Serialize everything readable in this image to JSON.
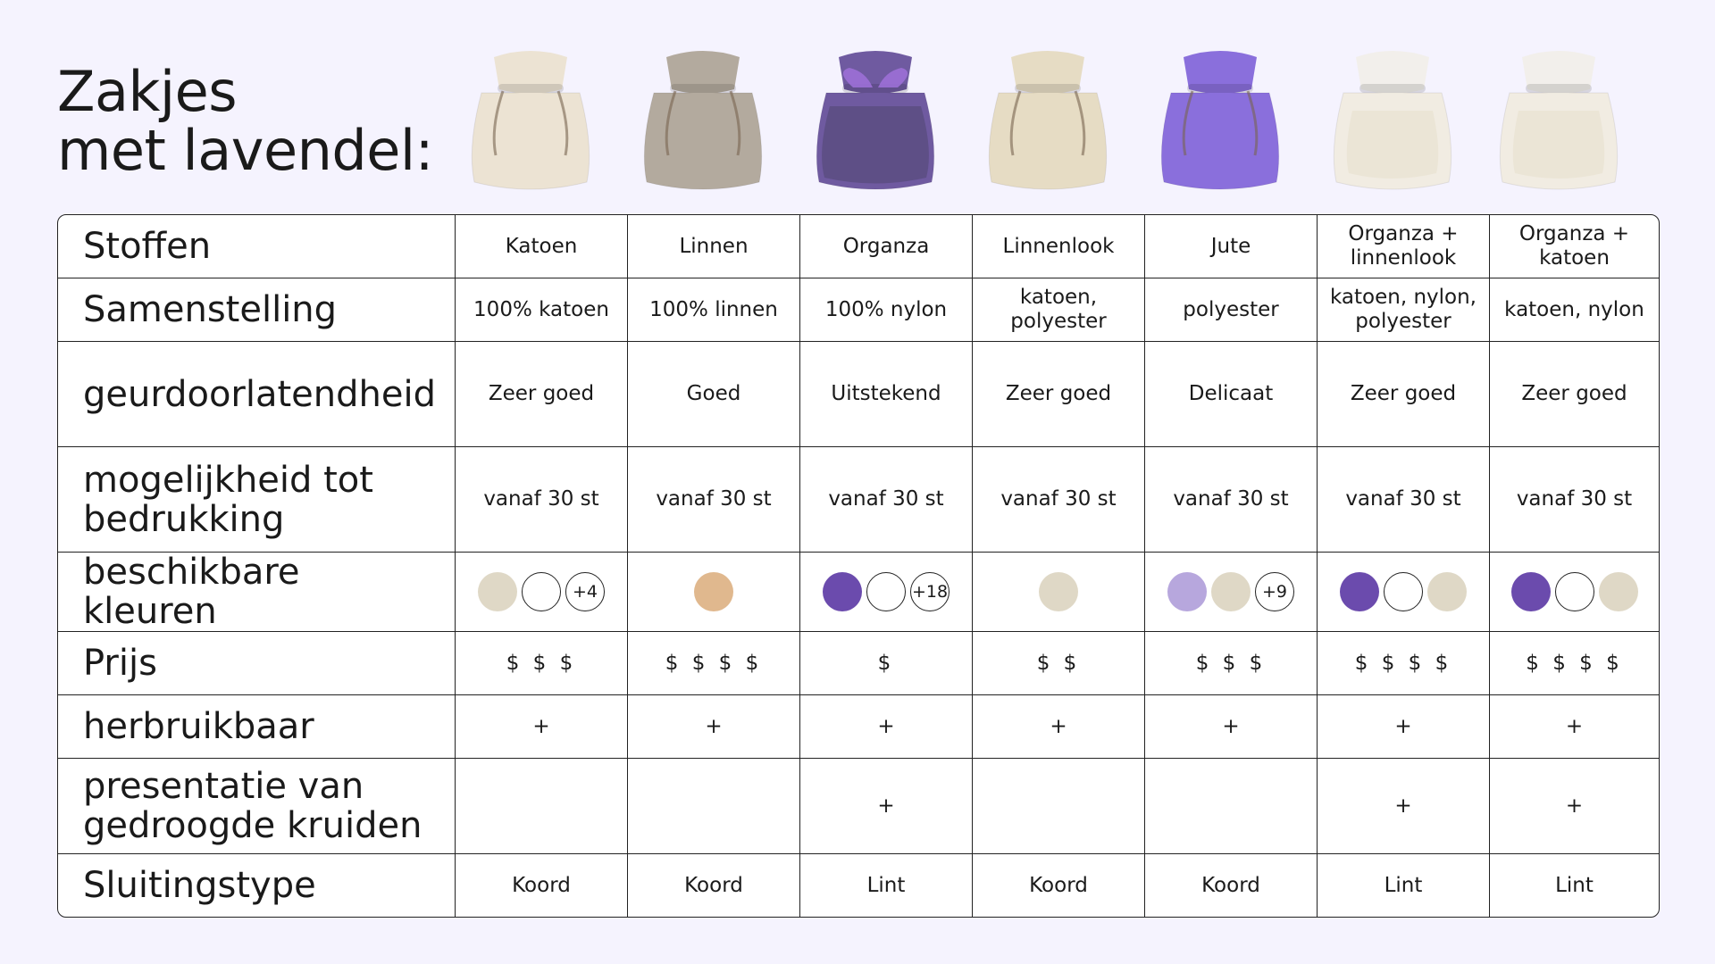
{
  "title": {
    "line1": "Zakjes",
    "line2": "met lavendel:"
  },
  "colors": {
    "page_background": "#f5f3fe",
    "table_background": "#ffffff",
    "border": "#222222"
  },
  "products": [
    {
      "name": "Katoen",
      "image": "cotton-pouch-image",
      "fabric_color": "#ece3d3"
    },
    {
      "name": "Linnen",
      "image": "linen-pouch-image",
      "fabric_color": "#b3aa9e"
    },
    {
      "name": "Organza",
      "image": "organza-pouch-with-lavender-image",
      "fabric_color": "#6f5aa0"
    },
    {
      "name": "Linnenlook",
      "image": "linen-look-pouch-image",
      "fabric_color": "#e6dcc4"
    },
    {
      "name": "Jute",
      "image": "jute-pouch-image",
      "fabric_color": "#8a6fdc"
    },
    {
      "name": "Organza + linnenlook",
      "image": "organza-linen-look-pouch-image",
      "fabric_color": "#f1ece2"
    },
    {
      "name": "Organza + katoen",
      "image": "organza-cotton-pouch-image",
      "fabric_color": "#f1ece2"
    }
  ],
  "rows": {
    "stoffen": {
      "label": "Stoffen",
      "values": [
        "Katoen",
        "Linnen",
        "Organza",
        "Linnenlook",
        "Jute",
        "Organza + linnenlook",
        "Organza + katoen"
      ]
    },
    "samenstelling": {
      "label": "Samenstelling",
      "values": [
        "100% katoen",
        "100% linnen",
        "100% nylon",
        "katoen, polyester",
        "polyester",
        "katoen, nylon, polyester",
        "katoen, nylon"
      ]
    },
    "geur": {
      "label": "geurdoorlatendheid",
      "values": [
        "Zeer goed",
        "Goed",
        "Uitstekend",
        "Zeer goed",
        "Delicaat",
        "Zeer goed",
        "Zeer goed"
      ]
    },
    "bedrukking": {
      "label": "mogelijkheid tot bedrukking",
      "values": [
        "vanaf 30 st",
        "vanaf 30 st",
        "vanaf 30 st",
        "vanaf 30 st",
        "vanaf 30 st",
        "vanaf 30 st",
        "vanaf 30 st"
      ]
    },
    "kleuren": {
      "label": "beschikbare kleuren",
      "values": [
        [
          {
            "color": "#dfd8c6"
          },
          {
            "color": "#ffffff",
            "outlined": true
          },
          {
            "text": "+4",
            "outlined": true
          }
        ],
        [
          {
            "color": "#e0b88e"
          }
        ],
        [
          {
            "color": "#6b4bad"
          },
          {
            "color": "#ffffff",
            "outlined": true
          },
          {
            "text": "+18",
            "outlined": true
          }
        ],
        [
          {
            "color": "#dfd8c6"
          }
        ],
        [
          {
            "color": "#b7a7dd"
          },
          {
            "color": "#dfd8c6"
          },
          {
            "text": "+9",
            "outlined": true
          }
        ],
        [
          {
            "color": "#6b4bad"
          },
          {
            "color": "#ffffff",
            "outlined": true
          },
          {
            "color": "#dfd8c6"
          }
        ],
        [
          {
            "color": "#6b4bad"
          },
          {
            "color": "#ffffff",
            "outlined": true
          },
          {
            "color": "#dfd8c6"
          }
        ]
      ]
    },
    "prijs": {
      "label": "Prijs",
      "values": [
        "$ $ $",
        "$ $ $ $",
        "$",
        "$ $",
        "$ $ $",
        "$ $ $ $",
        "$ $ $ $"
      ]
    },
    "herbruikbaar": {
      "label": "herbruikbaar",
      "values": [
        "+",
        "+",
        "+",
        "+",
        "+",
        "+",
        "+"
      ]
    },
    "presentatie": {
      "label": "presentatie van gedroogde kruiden",
      "values": [
        "",
        "",
        "+",
        "",
        "",
        "+",
        "+"
      ]
    },
    "sluiting": {
      "label": "Sluitingstype",
      "values": [
        "Koord",
        "Koord",
        "Lint",
        "Koord",
        "Koord",
        "Lint",
        "Lint"
      ]
    }
  }
}
